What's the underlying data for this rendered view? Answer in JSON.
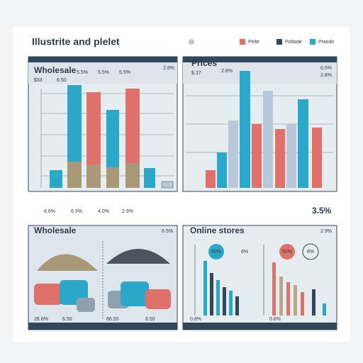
{
  "header": {
    "title": "Illustrite and plelet",
    "legend": [
      "Pelte",
      "Poltade",
      "Prasde"
    ]
  },
  "panels": [
    {
      "title": "Wholesale",
      "labels": [
        "$33",
        "6.50",
        "5.5%",
        "5.5%",
        "5.5%",
        "2.8%"
      ],
      "footer": [
        "8.6%",
        "6.3%",
        "4.0%",
        "2.9%"
      ]
    },
    {
      "title": "Prices",
      "labels": [
        "$.37",
        "2.8%",
        "6.5%",
        "2.8%"
      ],
      "footer": [
        "3.5%"
      ]
    },
    {
      "title": "Wholesale",
      "labels": [
        "6.5%"
      ],
      "footer": [
        "26.6%",
        "6.50",
        "66.50",
        "8.50"
      ]
    },
    {
      "title": "Online stores",
      "labels": [
        "2.9%",
        "50%",
        "8%",
        "50%",
        "8%"
      ],
      "footer": [
        "0.8%",
        "0.8%"
      ]
    }
  ]
}
